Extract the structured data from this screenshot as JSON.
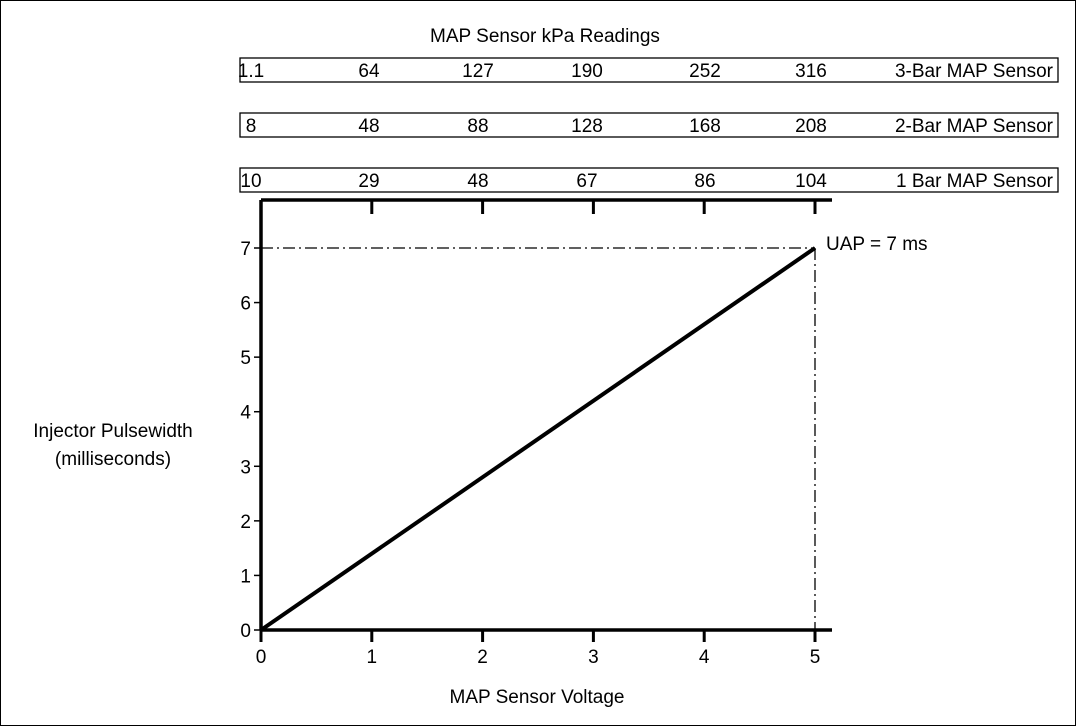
{
  "chart_data": {
    "type": "line",
    "title": "MAP Sensor kPa Readings",
    "xlabel": "MAP Sensor Voltage",
    "ylabel_lines": [
      "Injector Pulsewidth",
      "(milliseconds)"
    ],
    "xlim": [
      0,
      5
    ],
    "ylim": [
      0,
      7
    ],
    "x_ticks": [
      "0",
      "1",
      "2",
      "3",
      "4",
      "5"
    ],
    "y_ticks": [
      "0",
      "1",
      "2",
      "3",
      "4",
      "5",
      "6",
      "7"
    ],
    "series": [
      {
        "x": [
          0,
          5
        ],
        "y": [
          0,
          7
        ]
      }
    ],
    "annotation": {
      "text": "UAP = 7 ms",
      "x": 5,
      "y": 7
    },
    "sensor_scales": [
      {
        "name": "3-Bar MAP Sensor",
        "values": [
          "1.1",
          "64",
          "127",
          "190",
          "252",
          "316"
        ]
      },
      {
        "name": "2-Bar MAP Sensor",
        "values": [
          "8",
          "48",
          "88",
          "128",
          "168",
          "208"
        ]
      },
      {
        "name": "1 Bar MAP Sensor",
        "values": [
          "10",
          "29",
          "48",
          "67",
          "86",
          "104"
        ]
      }
    ],
    "grid": false,
    "colors": {
      "line": "#000000",
      "background": "#ffffff"
    }
  }
}
